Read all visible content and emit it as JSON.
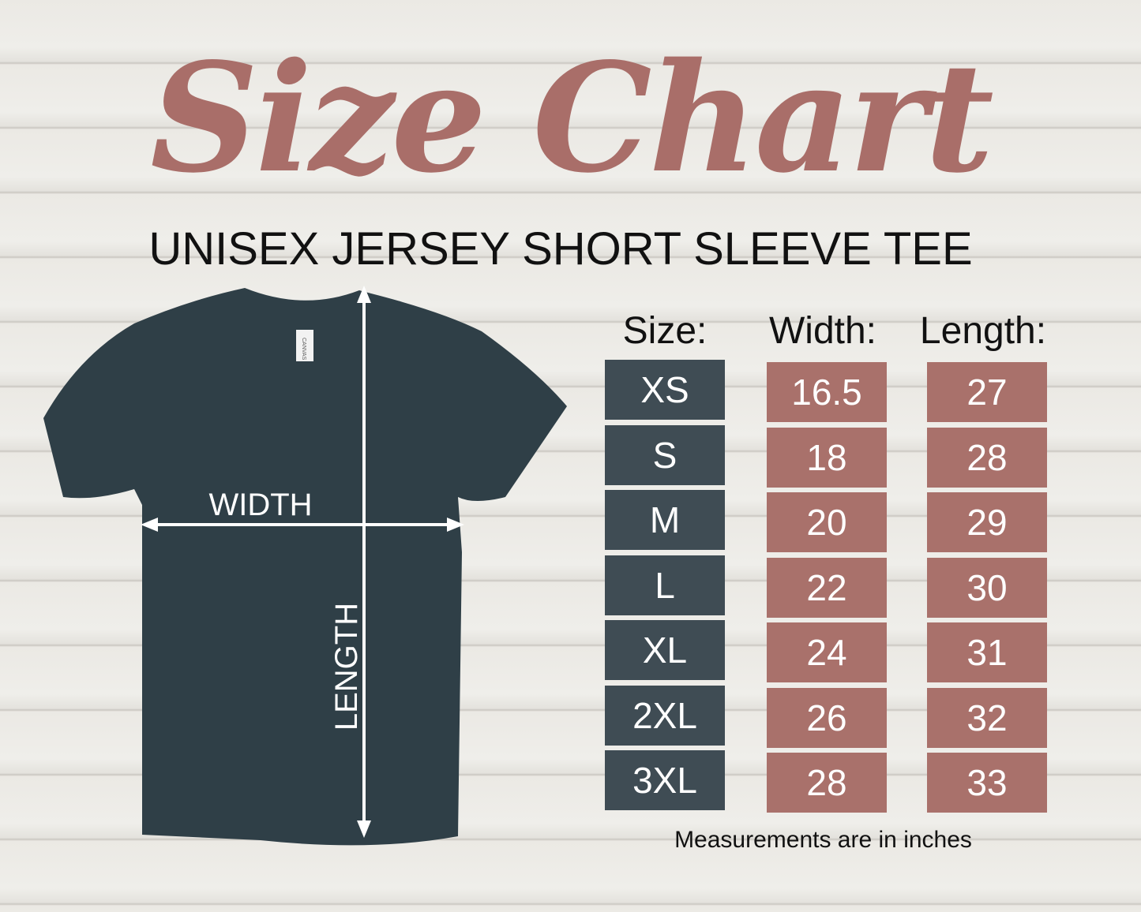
{
  "title": "Size Chart",
  "subtitle": "UNISEX JERSEY SHORT SLEEVE TEE",
  "diagram": {
    "width_label": "WIDTH",
    "length_label": "LENGTH",
    "tag_text": "CANVAS",
    "shirt_color": "#2f3f47"
  },
  "table": {
    "headers": [
      "Size:",
      "Width:",
      "Length:"
    ],
    "rows": [
      {
        "size": "XS",
        "width": "16.5",
        "length": "27"
      },
      {
        "size": "S",
        "width": "18",
        "length": "28"
      },
      {
        "size": "M",
        "width": "20",
        "length": "29"
      },
      {
        "size": "L",
        "width": "22",
        "length": "30"
      },
      {
        "size": "XL",
        "width": "24",
        "length": "31"
      },
      {
        "size": "2XL",
        "width": "26",
        "length": "32"
      },
      {
        "size": "3XL",
        "width": "28",
        "length": "33"
      }
    ],
    "size_color": "#3f4c54",
    "value_color": "#a9716b"
  },
  "note": "Measurements are in inches"
}
